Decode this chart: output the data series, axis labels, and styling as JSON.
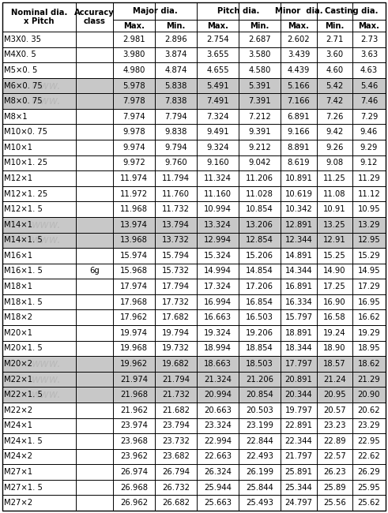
{
  "rows": [
    [
      "M3X0. 35",
      "2.981",
      "2.896",
      "2.754",
      "2.687",
      "2.602",
      "2.71",
      "2.73"
    ],
    [
      "M4X0. 5",
      "3.980",
      "3.874",
      "3.655",
      "3.580",
      "3.439",
      "3.60",
      "3.63"
    ],
    [
      "M5×0. 5",
      "4.980",
      "4.874",
      "4.655",
      "4.580",
      "4.439",
      "4.60",
      "4.63"
    ],
    [
      "M6×0. 75",
      "5.978",
      "5.838",
      "5.491",
      "5.391",
      "5.166",
      "5.42",
      "5.46"
    ],
    [
      "M8×0. 75",
      "7.978",
      "7.838",
      "7.491",
      "7.391",
      "7.166",
      "7.42",
      "7.46"
    ],
    [
      "M8×1",
      "7.974",
      "7.794",
      "7.324",
      "7.212",
      "6.891",
      "7.26",
      "7.29"
    ],
    [
      "M10×0. 75",
      "9.978",
      "9.838",
      "9.491",
      "9.391",
      "9.166",
      "9.42",
      "9.46"
    ],
    [
      "M10×1",
      "9.974",
      "9.794",
      "9.324",
      "9.212",
      "8.891",
      "9.26",
      "9.29"
    ],
    [
      "M10×1. 25",
      "9.972",
      "9.760",
      "9.160",
      "9.042",
      "8.619",
      "9.08",
      "9.12"
    ],
    [
      "M12×1",
      "11.974",
      "11.794",
      "11.324",
      "11.206",
      "10.891",
      "11.25",
      "11.29"
    ],
    [
      "M12×1. 25",
      "11.972",
      "11.760",
      "11.160",
      "11.028",
      "10.619",
      "11.08",
      "11.12"
    ],
    [
      "M12×1. 5",
      "11.968",
      "11.732",
      "10.994",
      "10.854",
      "10.342",
      "10.91",
      "10.95"
    ],
    [
      "M14×1",
      "13.974",
      "13.794",
      "13.324",
      "13.206",
      "12.891",
      "13.25",
      "13.29"
    ],
    [
      "M14×1. 5",
      "13.968",
      "13.732",
      "12.994",
      "12.854",
      "12.344",
      "12.91",
      "12.95"
    ],
    [
      "M16×1",
      "15.974",
      "15.794",
      "15.324",
      "15.206",
      "14.891",
      "15.25",
      "15.29"
    ],
    [
      "M16×1. 5",
      "15.968",
      "15.732",
      "14.994",
      "14.854",
      "14.344",
      "14.90",
      "14.95"
    ],
    [
      "M18×1",
      "17.974",
      "17.794",
      "17.324",
      "17.206",
      "16.891",
      "17.25",
      "17.29"
    ],
    [
      "M18×1. 5",
      "17.968",
      "17.732",
      "16.994",
      "16.854",
      "16.334",
      "16.90",
      "16.95"
    ],
    [
      "M18×2",
      "17.962",
      "17.682",
      "16.663",
      "16.503",
      "15.797",
      "16.58",
      "16.62"
    ],
    [
      "M20×1",
      "19.974",
      "19.794",
      "19.324",
      "19.206",
      "18.891",
      "19.24",
      "19.29"
    ],
    [
      "M20×1. 5",
      "19.968",
      "19.732",
      "18.994",
      "18.854",
      "18.344",
      "18.90",
      "18.95"
    ],
    [
      "M20×2",
      "19.962",
      "19.682",
      "18.663",
      "18.503",
      "17.797",
      "18.57",
      "18.62"
    ],
    [
      "M22×1",
      "21.974",
      "21.794",
      "21.324",
      "21.206",
      "20.891",
      "21.24",
      "21.29"
    ],
    [
      "M22×1. 5",
      "21.968",
      "21.732",
      "20.994",
      "20.854",
      "20.344",
      "20.95",
      "20.90"
    ],
    [
      "M22×2",
      "21.962",
      "21.682",
      "20.663",
      "20.503",
      "19.797",
      "20.57",
      "20.62"
    ],
    [
      "M24×1",
      "23.974",
      "23.794",
      "23.324",
      "23.199",
      "22.891",
      "23.23",
      "23.29"
    ],
    [
      "M24×1. 5",
      "23.968",
      "23.732",
      "22.994",
      "22.844",
      "22.344",
      "22.89",
      "22.95"
    ],
    [
      "M24×2",
      "23.962",
      "23.682",
      "22.663",
      "22.493",
      "21.797",
      "22.57",
      "22.62"
    ],
    [
      "M27×1",
      "26.974",
      "26.794",
      "26.324",
      "26.199",
      "25.891",
      "26.23",
      "26.29"
    ],
    [
      "M27×1. 5",
      "26.968",
      "26.732",
      "25.944",
      "25.844",
      "25.344",
      "25.89",
      "25.95"
    ],
    [
      "M27×2",
      "26.962",
      "26.682",
      "25.663",
      "25.493",
      "24.797",
      "25.56",
      "25.62"
    ]
  ],
  "shaded_rows": [
    3,
    4,
    12,
    13,
    21,
    22,
    23
  ],
  "acc_class_row": 15,
  "bg_color": "#ffffff",
  "shaded_color": "#c8c8c8",
  "border_color": "#000000",
  "font_size": 7.2,
  "header_font_size": 7.2
}
